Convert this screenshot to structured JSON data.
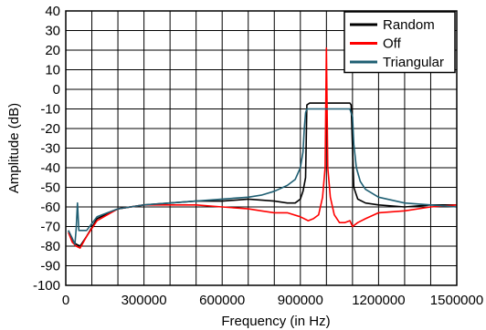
{
  "chart_data": {
    "type": "line",
    "xlabel": "Frequency (in Hz)",
    "ylabel": "Amplitude (dB)",
    "xlim": [
      0,
      1500000
    ],
    "ylim": [
      -100,
      40
    ],
    "x_ticks": [
      0,
      300000,
      600000,
      900000,
      1200000,
      1500000
    ],
    "x_tick_labels": [
      "0",
      "300000",
      "600000",
      "900000",
      "1200000",
      "1500000"
    ],
    "x_minor_step": 100000,
    "y_ticks": [
      40,
      30,
      20,
      10,
      0,
      -10,
      -20,
      -30,
      -40,
      -50,
      -60,
      -70,
      -80,
      -90,
      -100
    ],
    "y_tick_labels": [
      "40",
      "30",
      "20",
      "10",
      "0",
      "-10",
      "-20",
      "-30",
      "-40",
      "-50",
      "-60",
      "-70",
      "-80",
      "-90",
      "-100"
    ],
    "grid": true,
    "legend_position": "top-right",
    "series": [
      {
        "name": "Random",
        "color": "#000000",
        "x": [
          10000,
          25000,
          40000,
          55000,
          80000,
          120000,
          200000,
          300000,
          400000,
          500000,
          600000,
          700000,
          800000,
          850000,
          880000,
          900000,
          910000,
          920000,
          925000,
          935000,
          950000,
          975000,
          1000000,
          1025000,
          1050000,
          1075000,
          1090000,
          1095000,
          1100000,
          1105000,
          1120000,
          1150000,
          1200000,
          1300000,
          1400000,
          1500000
        ],
        "y": [
          -72,
          -77,
          -79,
          -80,
          -75,
          -66,
          -61,
          -59,
          -58,
          -57,
          -57,
          -56,
          -57,
          -58,
          -58,
          -56,
          -52,
          -45,
          -8,
          -7,
          -7,
          -7,
          -7,
          -7,
          -7,
          -7,
          -7,
          -8,
          -30,
          -50,
          -56,
          -58,
          -59,
          -60,
          -59,
          -59
        ]
      },
      {
        "name": "Off",
        "color": "#ff0000",
        "x": [
          10000,
          25000,
          40000,
          55000,
          80000,
          120000,
          200000,
          300000,
          400000,
          500000,
          600000,
          700000,
          750000,
          800000,
          850000,
          900000,
          930000,
          950000,
          970000,
          985000,
          995000,
          1000000,
          1005000,
          1015000,
          1030000,
          1050000,
          1070000,
          1090000,
          1100000,
          1120000,
          1150000,
          1200000,
          1300000,
          1400000,
          1500000
        ],
        "y": [
          -73,
          -78,
          -80,
          -81,
          -75,
          -67,
          -61,
          -59,
          -59,
          -59,
          -60,
          -61,
          -62,
          -63,
          -63,
          -65,
          -67,
          -66,
          -64,
          -55,
          -40,
          21,
          -40,
          -55,
          -64,
          -68,
          -68,
          -67,
          -70,
          -68,
          -66,
          -63,
          -62,
          -60,
          -59
        ]
      },
      {
        "name": "Triangular",
        "color": "#1f5f73",
        "x": [
          10000,
          25000,
          35000,
          40000,
          45000,
          50000,
          80000,
          120000,
          200000,
          300000,
          400000,
          500000,
          600000,
          700000,
          750000,
          800000,
          850000,
          880000,
          900000,
          910000,
          915000,
          920000,
          925000,
          935000,
          950000,
          975000,
          1000000,
          1025000,
          1050000,
          1075000,
          1090000,
          1100000,
          1105000,
          1115000,
          1130000,
          1150000,
          1200000,
          1300000,
          1400000,
          1500000
        ],
        "y": [
          -72,
          -76,
          -79,
          -71,
          -58,
          -72,
          -72,
          -65,
          -61,
          -59,
          -58,
          -57,
          -56,
          -55,
          -54,
          -52,
          -49,
          -46,
          -40,
          -32,
          -20,
          -12,
          -10,
          -10,
          -10,
          -10,
          -10,
          -10,
          -10,
          -10,
          -10,
          -14,
          -28,
          -40,
          -47,
          -51,
          -55,
          -58,
          -59,
          -60
        ]
      }
    ]
  }
}
